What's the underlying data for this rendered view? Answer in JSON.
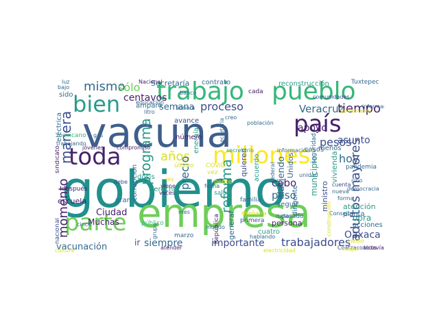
{
  "palette": {
    "dark_purple": "#46216b",
    "indigo": "#3b4c8b",
    "blue": "#31688e",
    "slate": "#3f5e8c",
    "teal": "#21908d",
    "sea": "#2a9a8a",
    "green": "#35b779",
    "lime": "#6ece58",
    "yellow": "#fde725",
    "gold": "#d9e021"
  },
  "words": [
    {
      "text": "gobierno",
      "color": "teal"
    },
    {
      "text": "vacuna",
      "color": "slate"
    },
    {
      "text": "empresa",
      "color": "lime"
    },
    {
      "text": "trabajo",
      "color": "green"
    },
    {
      "text": "pueblo",
      "color": "green"
    },
    {
      "text": "bien",
      "color": "sea"
    },
    {
      "text": "país",
      "color": "dark_purple"
    },
    {
      "text": "toda",
      "color": "dark_purple"
    },
    {
      "text": "millones",
      "color": "yellow"
    },
    {
      "text": "parte",
      "color": "lime"
    },
    {
      "text": "mismo",
      "color": "blue"
    },
    {
      "text": "sólo",
      "color": "lime"
    },
    {
      "text": "centavos",
      "color": "dark_purple"
    },
    {
      "text": "manera",
      "color": "indigo"
    },
    {
      "text": "programa",
      "color": "sea"
    },
    {
      "text": "semana",
      "color": "blue"
    },
    {
      "text": "proceso",
      "color": "indigo"
    },
    {
      "text": "Veracruz",
      "color": "blue"
    },
    {
      "text": "tiempo",
      "color": "dark_purple"
    },
    {
      "text": "apoyo",
      "color": "dark_purple"
    },
    {
      "text": "asunto",
      "color": "indigo"
    },
    {
      "text": "pesos",
      "color": "indigo"
    },
    {
      "text": "hoy",
      "color": "blue"
    },
    {
      "text": "años",
      "color": "gold"
    },
    {
      "text": "reforma",
      "color": "sea"
    },
    {
      "text": "adultos mayores",
      "color": "indigo"
    },
    {
      "text": "momento",
      "color": "dark_purple"
    },
    {
      "text": "precio",
      "color": "blue"
    },
    {
      "text": "cabo",
      "color": "dark_purple"
    },
    {
      "text": "peso",
      "color": "blue"
    },
    {
      "text": "Ciudad",
      "color": "dark_purple"
    },
    {
      "text": "Muchas",
      "color": "dark_purple"
    },
    {
      "text": "vacunación",
      "color": "blue"
    },
    {
      "text": "siempre",
      "color": "blue"
    },
    {
      "text": "importante",
      "color": "indigo"
    },
    {
      "text": "trabajadores",
      "color": "indigo"
    },
    {
      "text": "Oaxaca",
      "color": "indigo"
    },
    {
      "text": "obra",
      "color": "sea"
    },
    {
      "text": "Secretaría",
      "color": "blue"
    },
    {
      "text": "contrato",
      "color": "blue"
    },
    {
      "text": "reconstrucción",
      "color": "sea"
    },
    {
      "text": "Tuxtepec",
      "color": "blue"
    },
    {
      "text": "Haciendo",
      "color": "blue"
    },
    {
      "text": "Unidos",
      "color": "blue"
    },
    {
      "text": "municipio",
      "color": "sea"
    },
    {
      "text": "ministro",
      "color": "indigo"
    },
    {
      "text": "vivienda",
      "color": "sea"
    },
    {
      "text": "atención",
      "color": "sea"
    },
    {
      "text": "general",
      "color": "blue"
    },
    {
      "text": "persona",
      "color": "dark_purple"
    },
    {
      "text": "dirigente",
      "color": "blue"
    },
    {
      "text": "seguir",
      "color": "blue"
    },
    {
      "text": "escuela",
      "color": "dark_purple"
    },
    {
      "text": "corrupción",
      "color": "blue"
    },
    {
      "text": "derecho",
      "color": "sea"
    },
    {
      "text": "quieren",
      "color": "indigo"
    },
    {
      "text": "energía",
      "color": "sea"
    },
    {
      "text": "acuerdo",
      "color": "sea"
    },
    {
      "text": "casos",
      "color": "blue"
    },
    {
      "text": "gente",
      "color": "gold"
    },
    {
      "text": "salud",
      "color": "sea"
    },
    {
      "text": "familia",
      "color": "blue"
    },
    {
      "text": "mañana",
      "color": "gold"
    },
    {
      "text": "cuatro",
      "color": "sea"
    },
    {
      "text": "primera",
      "color": "indigo"
    },
    {
      "text": "pasado",
      "color": "blue"
    },
    {
      "text": "acciones",
      "color": "blue"
    },
    {
      "text": "planta",
      "color": "blue"
    },
    {
      "text": "Coatzacoalcos",
      "color": "indigo"
    },
    {
      "text": "todavía",
      "color": "dark_purple"
    },
    {
      "text": "dosis",
      "color": "sea"
    },
    {
      "text": "amparo",
      "color": "blue"
    },
    {
      "text": "avance",
      "color": "indigo"
    },
    {
      "text": "número",
      "color": "dark_purple"
    },
    {
      "text": "último",
      "color": "gold"
    },
    {
      "text": "COVID",
      "color": "gold"
    },
    {
      "text": "marzo",
      "color": "blue"
    },
    {
      "text": "vez",
      "color": "gold"
    },
    {
      "text": "sindicato",
      "color": "dark_purple"
    },
    {
      "text": "eléctrica",
      "color": "blue"
    },
    {
      "text": "sido",
      "color": "blue"
    },
    {
      "text": "nacional",
      "color": "indigo"
    },
    {
      "text": "gran",
      "color": "blue"
    },
    {
      "text": "público",
      "color": "green"
    },
    {
      "text": "ir",
      "color": "indigo"
    },
    {
      "text": "comunidades",
      "color": "indigo"
    },
    {
      "text": "informar",
      "color": "blue"
    },
    {
      "text": "menos",
      "color": "blue"
    },
    {
      "text": "seguridad",
      "color": "blue"
    },
    {
      "text": "pandemia",
      "color": "blue"
    },
    {
      "text": "cuenta",
      "color": "indigo"
    },
    {
      "text": "nueva",
      "color": "blue"
    },
    {
      "text": "forma",
      "color": "blue"
    },
    {
      "text": "después",
      "color": "dark_purple"
    },
    {
      "text": "cada",
      "color": "dark_purple"
    },
    {
      "text": "República",
      "color": "dark_purple"
    },
    {
      "text": "mundo",
      "color": "blue"
    },
    {
      "text": "Consejo",
      "color": "blue"
    },
    {
      "text": "bajo",
      "color": "blue"
    },
    {
      "text": "Nacional",
      "color": "dark_purple"
    },
    {
      "text": "banco",
      "color": "blue"
    },
    {
      "text": "educación",
      "color": "blue"
    },
    {
      "text": "litro",
      "color": "blue"
    },
    {
      "text": "Sonora",
      "color": "blue"
    },
    {
      "text": "creo",
      "color": "blue"
    },
    {
      "text": "población",
      "color": "blue"
    },
    {
      "text": "secretario",
      "color": "sea"
    },
    {
      "text": "información",
      "color": "blue"
    },
    {
      "text": "jóvenes",
      "color": "dark_purple"
    },
    {
      "text": "compromiso",
      "color": "dark_purple"
    },
    {
      "text": "debe",
      "color": "indigo"
    },
    {
      "text": "viene",
      "color": "dark_purple"
    },
    {
      "text": "veces",
      "color": "dark_purple"
    },
    {
      "text": "fecha",
      "color": "blue"
    },
    {
      "text": "secretaria",
      "color": "blue"
    },
    {
      "text": "atender",
      "color": "dark_purple"
    },
    {
      "text": "hablando",
      "color": "blue"
    },
    {
      "text": "cinco",
      "color": "blue"
    },
    {
      "text": "grupo",
      "color": "blue"
    },
    {
      "text": "medio",
      "color": "gold"
    },
    {
      "text": "mejor",
      "color": "gold"
    },
    {
      "text": "sino",
      "color": "blue"
    },
    {
      "text": "daño",
      "color": "blue"
    },
    {
      "text": "luz",
      "color": "blue"
    },
    {
      "text": "gas",
      "color": "blue"
    },
    {
      "text": "mes",
      "color": "blue"
    },
    {
      "text": "ley",
      "color": "gold"
    },
    {
      "text": "cultura",
      "color": "gold"
    },
    {
      "text": "mexicano",
      "color": "green"
    },
    {
      "text": "trabajando",
      "color": "blue"
    },
    {
      "text": "gobernador",
      "color": "gold"
    },
    {
      "text": "democracia",
      "color": "blue"
    },
    {
      "text": "construcción",
      "color": "gold"
    },
    {
      "text": "Federal",
      "color": "blue"
    },
    {
      "text": "electricidad",
      "color": "gold"
    },
    {
      "text": "unidad",
      "color": "blue"
    }
  ]
}
